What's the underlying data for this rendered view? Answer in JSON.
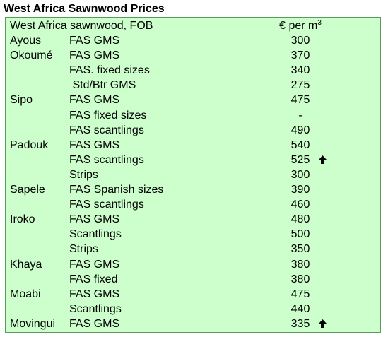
{
  "title": "West Africa Sawnwood Prices",
  "header": {
    "label": "West Africa sawnwood, FOB",
    "unit": "€ per m",
    "unit_sup": "3"
  },
  "rows": [
    {
      "species": "Ayous",
      "grade": "FAS GMS",
      "price": "300",
      "arrow": false
    },
    {
      "species": "Okoumé",
      "grade": "FAS GMS",
      "price": "370",
      "arrow": false
    },
    {
      "species": "",
      "grade": "FAS. fixed sizes",
      "price": "340",
      "arrow": false
    },
    {
      "species": "",
      "grade": " Std/Btr GMS",
      "price": "275",
      "arrow": false
    },
    {
      "species": "Sipo",
      "grade": "FAS GMS",
      "price": "475",
      "arrow": false
    },
    {
      "species": "",
      "grade": "FAS fixed sizes",
      "price": "-",
      "arrow": false
    },
    {
      "species": "",
      "grade": "FAS scantlings",
      "price": "490",
      "arrow": false
    },
    {
      "species": "Padouk",
      "grade": "FAS GMS",
      "price": "540",
      "arrow": false
    },
    {
      "species": "",
      "grade": "FAS scantlings",
      "price": "525",
      "arrow": true
    },
    {
      "species": "",
      "grade": "Strips",
      "price": "300",
      "arrow": false
    },
    {
      "species": "Sapele",
      "grade": "FAS Spanish sizes",
      "price": "390",
      "arrow": false
    },
    {
      "species": "",
      "grade": "FAS scantlings",
      "price": "460",
      "arrow": false
    },
    {
      "species": "Iroko",
      "grade": "FAS GMS",
      "price": "480",
      "arrow": false
    },
    {
      "species": "",
      "grade": "Scantlings",
      "price": "500",
      "arrow": false
    },
    {
      "species": "",
      "grade": "Strips",
      "price": "350",
      "arrow": false
    },
    {
      "species": "Khaya",
      "grade": "FAS GMS",
      "price": "380",
      "arrow": false
    },
    {
      "species": "",
      "grade": "FAS fixed",
      "price": "380",
      "arrow": false
    },
    {
      "species": "Moabi",
      "grade": "FAS GMS",
      "price": "475",
      "arrow": false
    },
    {
      "species": "",
      "grade": "Scantlings",
      "price": "440",
      "arrow": false
    },
    {
      "species": "Movingui",
      "grade": "FAS GMS",
      "price": "335",
      "arrow": true
    }
  ]
}
